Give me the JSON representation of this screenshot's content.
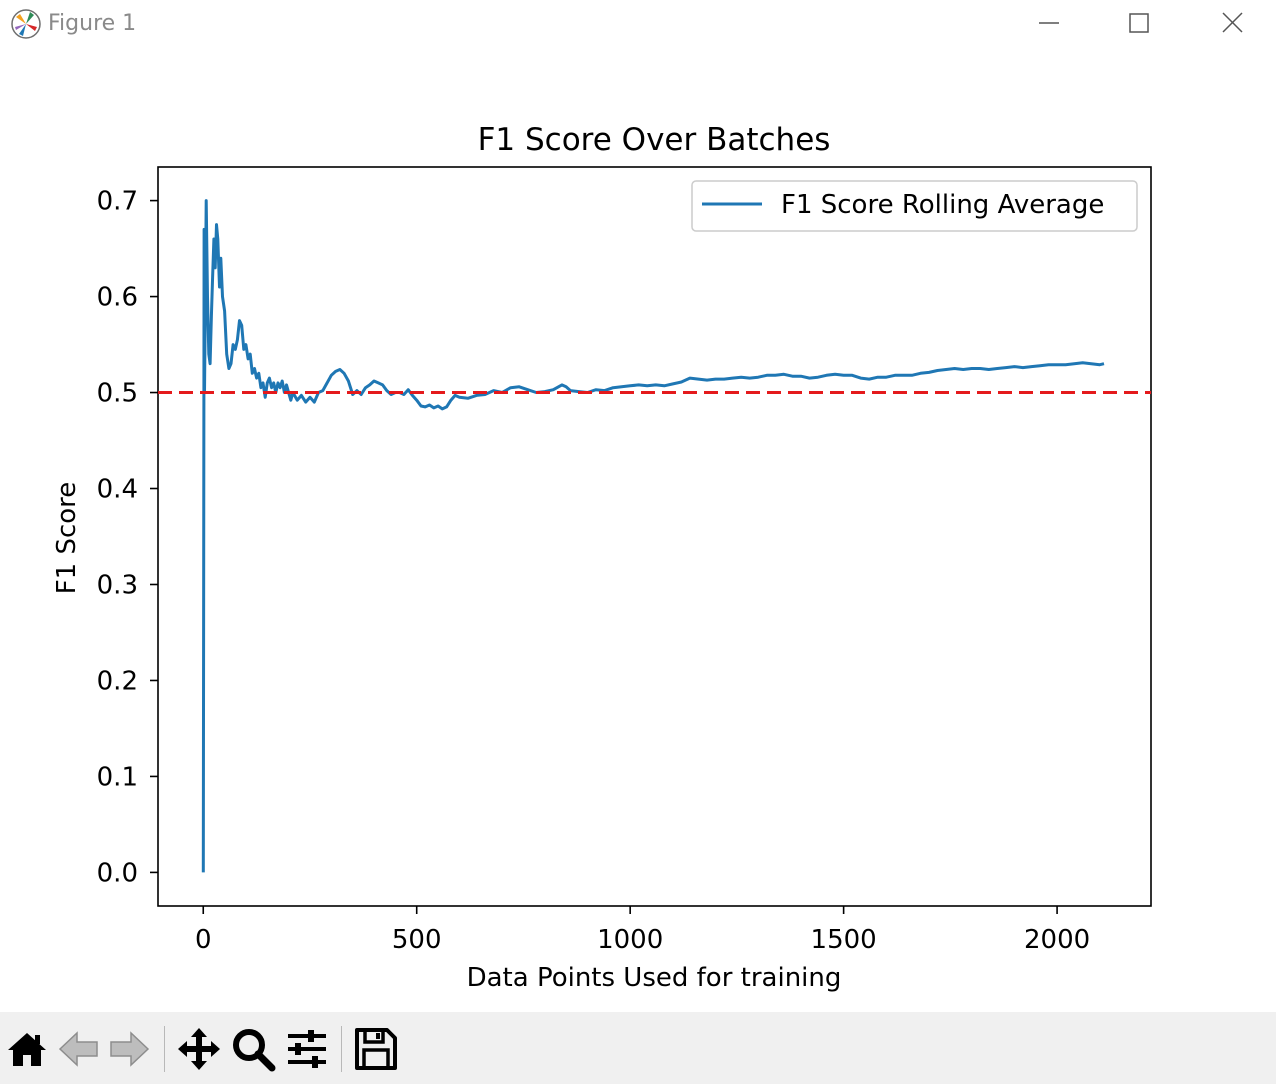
{
  "window": {
    "title": "Figure 1"
  },
  "toolbar": {
    "tools": [
      {
        "name": "home-button",
        "icon": "home-icon"
      },
      {
        "name": "back-button",
        "icon": "arrow-left-icon",
        "disabled": true
      },
      {
        "name": "forward-button",
        "icon": "arrow-right-icon",
        "disabled": true
      },
      {
        "name": "pan-button",
        "icon": "move-icon"
      },
      {
        "name": "zoom-button",
        "icon": "magnifier-icon"
      },
      {
        "name": "configure-subplots-button",
        "icon": "sliders-icon"
      },
      {
        "name": "save-button",
        "icon": "floppy-disk-icon"
      }
    ]
  },
  "chart_data": {
    "type": "line",
    "title": "F1 Score Over Batches",
    "xlabel": "Data Points Used for training",
    "ylabel": "F1 Score",
    "xlim": [
      -106,
      2220
    ],
    "ylim": [
      -0.035,
      0.735
    ],
    "xticks": [
      0,
      500,
      1000,
      1500,
      2000
    ],
    "xtick_labels": [
      "0",
      "500",
      "1000",
      "1500",
      "2000"
    ],
    "yticks": [
      0.0,
      0.1,
      0.2,
      0.3,
      0.4,
      0.5,
      0.6,
      0.7
    ],
    "ytick_labels": [
      "0.0",
      "0.1",
      "0.2",
      "0.3",
      "0.4",
      "0.5",
      "0.6",
      "0.7"
    ],
    "grid": false,
    "legend_position": "upper-right",
    "series": [
      {
        "name": "F1 Score Rolling Average",
        "color": "#1f77b4",
        "points": [
          [
            0,
            0.0
          ],
          [
            1,
            0.33
          ],
          [
            2,
            0.67
          ],
          [
            3,
            0.5
          ],
          [
            5,
            0.6
          ],
          [
            7,
            0.7
          ],
          [
            10,
            0.6
          ],
          [
            13,
            0.54
          ],
          [
            16,
            0.53
          ],
          [
            19,
            0.58
          ],
          [
            22,
            0.62
          ],
          [
            25,
            0.66
          ],
          [
            28,
            0.63
          ],
          [
            31,
            0.675
          ],
          [
            34,
            0.66
          ],
          [
            38,
            0.61
          ],
          [
            41,
            0.64
          ],
          [
            45,
            0.6
          ],
          [
            50,
            0.585
          ],
          [
            55,
            0.54
          ],
          [
            60,
            0.525
          ],
          [
            65,
            0.53
          ],
          [
            70,
            0.55
          ],
          [
            75,
            0.545
          ],
          [
            80,
            0.555
          ],
          [
            85,
            0.575
          ],
          [
            90,
            0.57
          ],
          [
            95,
            0.545
          ],
          [
            100,
            0.55
          ],
          [
            105,
            0.535
          ],
          [
            110,
            0.54
          ],
          [
            115,
            0.52
          ],
          [
            120,
            0.525
          ],
          [
            125,
            0.515
          ],
          [
            130,
            0.52
          ],
          [
            135,
            0.505
          ],
          [
            140,
            0.51
          ],
          [
            145,
            0.495
          ],
          [
            150,
            0.51
          ],
          [
            155,
            0.515
          ],
          [
            160,
            0.505
          ],
          [
            165,
            0.51
          ],
          [
            170,
            0.5
          ],
          [
            175,
            0.51
          ],
          [
            180,
            0.505
          ],
          [
            185,
            0.512
          ],
          [
            190,
            0.5
          ],
          [
            195,
            0.508
          ],
          [
            200,
            0.5
          ],
          [
            205,
            0.492
          ],
          [
            210,
            0.5
          ],
          [
            220,
            0.492
          ],
          [
            230,
            0.497
          ],
          [
            240,
            0.49
          ],
          [
            250,
            0.495
          ],
          [
            260,
            0.49
          ],
          [
            270,
            0.5
          ],
          [
            280,
            0.502
          ],
          [
            290,
            0.51
          ],
          [
            300,
            0.518
          ],
          [
            310,
            0.522
          ],
          [
            320,
            0.524
          ],
          [
            330,
            0.52
          ],
          [
            340,
            0.512
          ],
          [
            350,
            0.498
          ],
          [
            360,
            0.502
          ],
          [
            370,
            0.498
          ],
          [
            380,
            0.505
          ],
          [
            390,
            0.508
          ],
          [
            400,
            0.512
          ],
          [
            410,
            0.51
          ],
          [
            420,
            0.508
          ],
          [
            430,
            0.502
          ],
          [
            440,
            0.498
          ],
          [
            450,
            0.5
          ],
          [
            460,
            0.5
          ],
          [
            470,
            0.498
          ],
          [
            480,
            0.503
          ],
          [
            490,
            0.497
          ],
          [
            500,
            0.492
          ],
          [
            510,
            0.486
          ],
          [
            520,
            0.485
          ],
          [
            530,
            0.487
          ],
          [
            540,
            0.484
          ],
          [
            550,
            0.486
          ],
          [
            560,
            0.483
          ],
          [
            570,
            0.485
          ],
          [
            580,
            0.492
          ],
          [
            590,
            0.497
          ],
          [
            600,
            0.495
          ],
          [
            620,
            0.494
          ],
          [
            640,
            0.497
          ],
          [
            660,
            0.498
          ],
          [
            680,
            0.502
          ],
          [
            700,
            0.5
          ],
          [
            720,
            0.505
          ],
          [
            740,
            0.506
          ],
          [
            760,
            0.503
          ],
          [
            780,
            0.5
          ],
          [
            800,
            0.501
          ],
          [
            820,
            0.503
          ],
          [
            840,
            0.508
          ],
          [
            850,
            0.506
          ],
          [
            860,
            0.502
          ],
          [
            880,
            0.501
          ],
          [
            900,
            0.5
          ],
          [
            920,
            0.503
          ],
          [
            940,
            0.502
          ],
          [
            960,
            0.505
          ],
          [
            980,
            0.506
          ],
          [
            1000,
            0.507
          ],
          [
            1020,
            0.508
          ],
          [
            1040,
            0.507
          ],
          [
            1060,
            0.508
          ],
          [
            1080,
            0.507
          ],
          [
            1100,
            0.509
          ],
          [
            1120,
            0.511
          ],
          [
            1140,
            0.515
          ],
          [
            1160,
            0.514
          ],
          [
            1180,
            0.513
          ],
          [
            1200,
            0.514
          ],
          [
            1220,
            0.514
          ],
          [
            1240,
            0.515
          ],
          [
            1260,
            0.516
          ],
          [
            1280,
            0.515
          ],
          [
            1300,
            0.516
          ],
          [
            1320,
            0.518
          ],
          [
            1340,
            0.518
          ],
          [
            1360,
            0.519
          ],
          [
            1380,
            0.517
          ],
          [
            1400,
            0.517
          ],
          [
            1420,
            0.515
          ],
          [
            1440,
            0.516
          ],
          [
            1460,
            0.518
          ],
          [
            1480,
            0.519
          ],
          [
            1500,
            0.518
          ],
          [
            1520,
            0.518
          ],
          [
            1540,
            0.515
          ],
          [
            1560,
            0.514
          ],
          [
            1580,
            0.516
          ],
          [
            1600,
            0.516
          ],
          [
            1620,
            0.518
          ],
          [
            1640,
            0.518
          ],
          [
            1660,
            0.518
          ],
          [
            1680,
            0.52
          ],
          [
            1700,
            0.521
          ],
          [
            1720,
            0.523
          ],
          [
            1740,
            0.524
          ],
          [
            1760,
            0.525
          ],
          [
            1780,
            0.524
          ],
          [
            1800,
            0.525
          ],
          [
            1820,
            0.525
          ],
          [
            1840,
            0.524
          ],
          [
            1860,
            0.525
          ],
          [
            1880,
            0.526
          ],
          [
            1900,
            0.527
          ],
          [
            1920,
            0.526
          ],
          [
            1940,
            0.527
          ],
          [
            1960,
            0.528
          ],
          [
            1980,
            0.529
          ],
          [
            2000,
            0.529
          ],
          [
            2020,
            0.529
          ],
          [
            2040,
            0.53
          ],
          [
            2060,
            0.531
          ],
          [
            2080,
            0.53
          ],
          [
            2100,
            0.529
          ],
          [
            2110,
            0.53
          ]
        ]
      }
    ],
    "reference_lines": [
      {
        "axis": "y",
        "value": 0.5,
        "color": "#e41a1c",
        "style": "dashed"
      }
    ]
  }
}
